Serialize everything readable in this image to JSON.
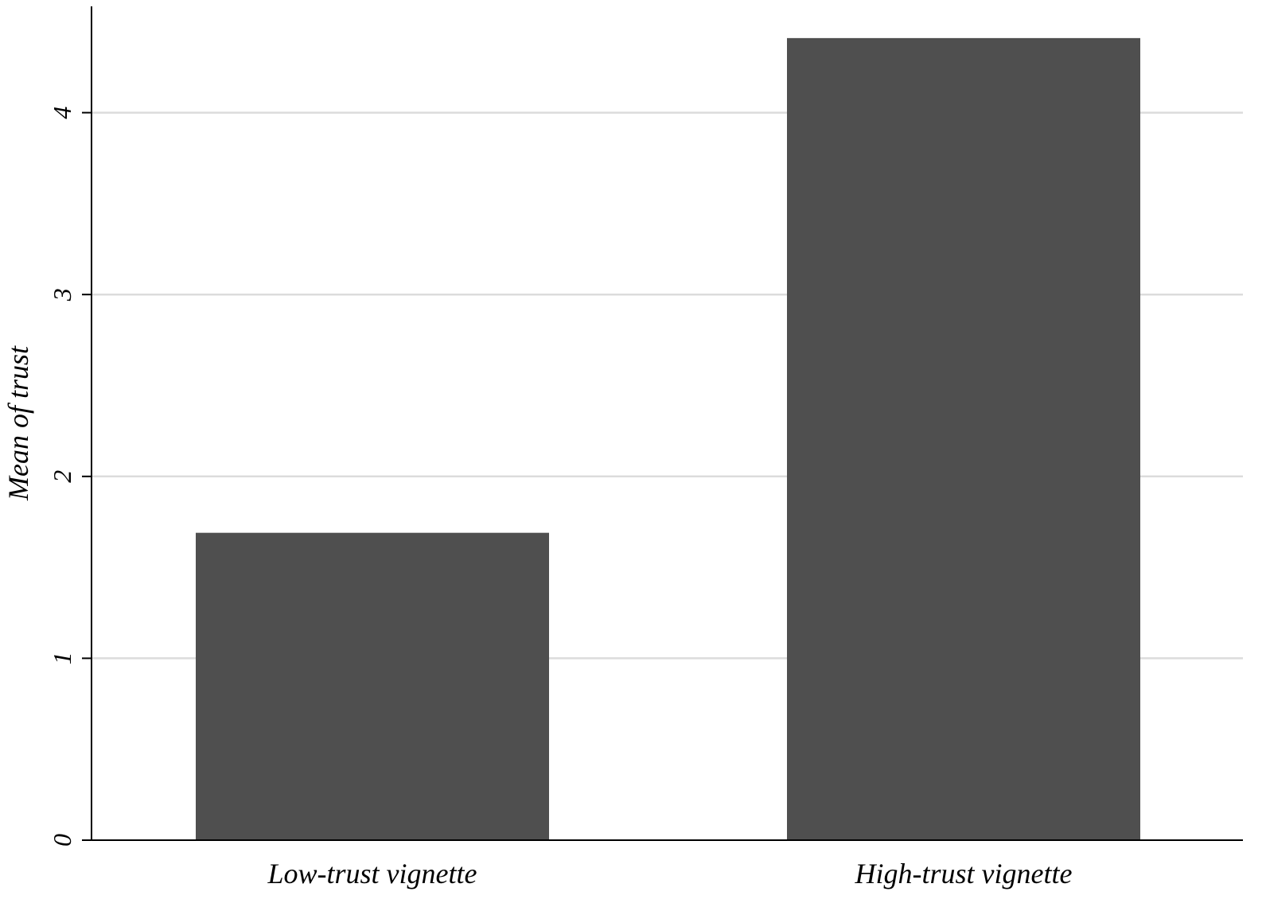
{
  "chart_data": {
    "type": "bar",
    "categories": [
      "Low-trust vignette",
      "High-trust vignette"
    ],
    "values": [
      1.69,
      4.41
    ],
    "ylabel": "Mean of trust",
    "xlabel": "",
    "ylim": [
      0,
      4.6
    ],
    "yticks": [
      "0",
      "1",
      "2",
      "3",
      "4"
    ],
    "grid": true,
    "legend": "none",
    "colors": {
      "bar": "#4f4f4f",
      "grid": "#dcdcdc",
      "axis": "#000000"
    }
  }
}
